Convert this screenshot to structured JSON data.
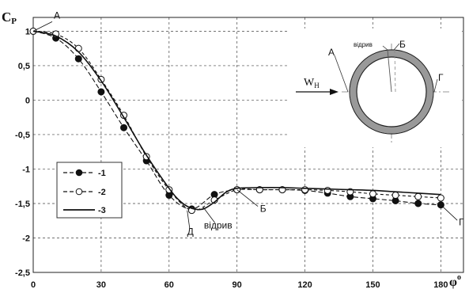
{
  "chart_data": {
    "type": "line",
    "ylabel": "C",
    "ylabel_sub": "P",
    "xlabel": "φ",
    "xlabel_sup": "o",
    "xlim": [
      0,
      190
    ],
    "ylim": [
      -2.5,
      1.2
    ],
    "x_ticks": [
      "0",
      "30",
      "60",
      "90",
      "120",
      "150",
      "180"
    ],
    "y_ticks": [
      "1",
      "0,5",
      "0",
      "-0,5",
      "-1",
      "-1,5",
      "-2",
      "-2,5"
    ],
    "grid": true,
    "legend_position": "left-center",
    "series": [
      {
        "name": "-1",
        "marker": "filled-circle",
        "line": "dashed",
        "x": [
          0,
          10,
          20,
          30,
          40,
          50,
          60,
          70,
          80,
          90,
          100,
          110,
          120,
          130,
          140,
          150,
          160,
          170,
          180
        ],
        "y": [
          1.0,
          0.9,
          0.6,
          0.12,
          -0.4,
          -0.88,
          -1.38,
          -1.58,
          -1.37,
          -1.3,
          -1.3,
          -1.3,
          -1.31,
          -1.35,
          -1.4,
          -1.43,
          -1.46,
          -1.5,
          -1.52
        ]
      },
      {
        "name": "-2",
        "marker": "open-circle",
        "line": "dashed",
        "x": [
          0,
          10,
          20,
          30,
          40,
          50,
          60,
          70,
          80,
          90,
          100,
          110,
          120,
          130,
          140,
          150,
          160,
          170,
          180
        ],
        "y": [
          1.0,
          0.96,
          0.75,
          0.3,
          -0.22,
          -0.82,
          -1.3,
          -1.6,
          -1.45,
          -1.3,
          -1.3,
          -1.3,
          -1.3,
          -1.31,
          -1.33,
          -1.36,
          -1.38,
          -1.4,
          -1.42
        ]
      },
      {
        "name": "-3",
        "marker": "none",
        "line": "solid",
        "x": [
          0,
          10,
          20,
          30,
          40,
          50,
          60,
          65,
          70,
          75,
          80,
          85,
          90,
          100,
          110,
          120,
          130,
          140,
          150,
          160,
          170,
          180
        ],
        "y": [
          1.0,
          0.93,
          0.7,
          0.28,
          -0.25,
          -0.8,
          -1.28,
          -1.47,
          -1.57,
          -1.58,
          -1.48,
          -1.34,
          -1.28,
          -1.27,
          -1.27,
          -1.28,
          -1.29,
          -1.3,
          -1.31,
          -1.33,
          -1.35,
          -1.37
        ]
      }
    ],
    "annotations": [
      {
        "text": "А",
        "x": 0,
        "y": 1.0
      },
      {
        "text": "Д",
        "x": 68,
        "y": -1.6
      },
      {
        "text": "відрив",
        "x": 75,
        "y": -1.55
      },
      {
        "text": "Б",
        "x": 90,
        "y": -1.3
      },
      {
        "text": "Г",
        "x": 180,
        "y": -1.52
      }
    ],
    "inset": {
      "labels": {
        "a": "А",
        "b": "Б",
        "g": "Г",
        "otryv": "відрив"
      },
      "flow_label": "W",
      "flow_sub": "Н"
    }
  }
}
